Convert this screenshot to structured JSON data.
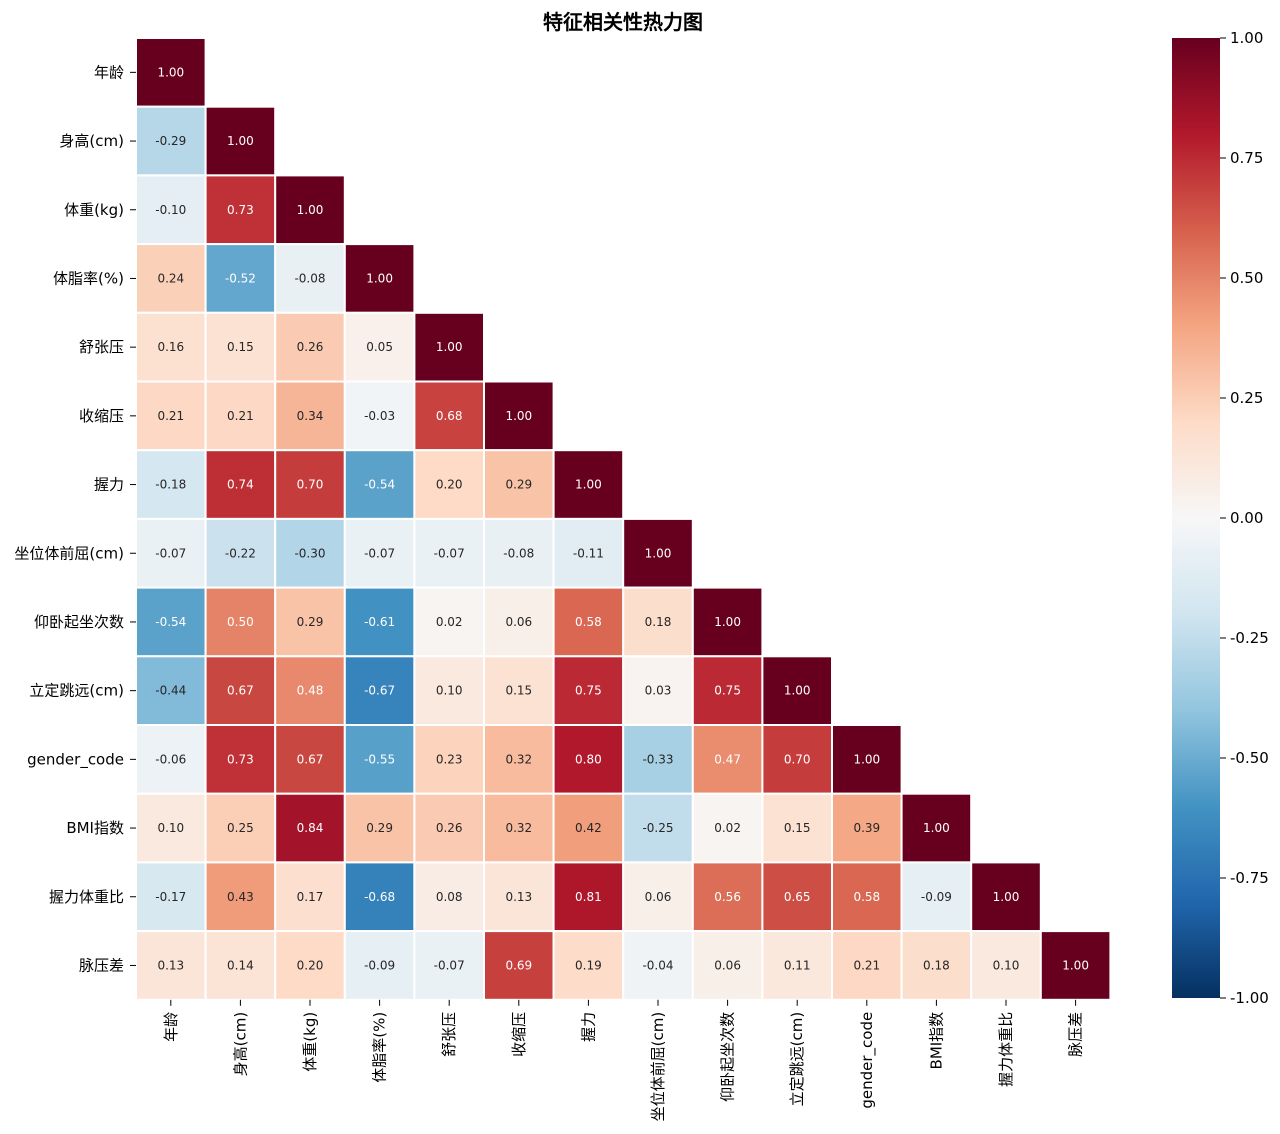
{
  "chart_data": {
    "type": "heatmap",
    "title": "特征相关性热力图",
    "labels": [
      "年龄",
      "身高(cm)",
      "体重(kg)",
      "体脂率(%)",
      "舒张压",
      "收缩压",
      "握力",
      "坐位体前屈(cm)",
      "仰卧起坐次数",
      "立定跳远(cm)",
      "gender_code",
      "BMI指数",
      "握力体重比",
      "脉压差"
    ],
    "matrix": [
      [
        1.0
      ],
      [
        -0.29,
        1.0
      ],
      [
        -0.1,
        0.73,
        1.0
      ],
      [
        0.24,
        -0.52,
        -0.08,
        1.0
      ],
      [
        0.16,
        0.15,
        0.26,
        0.05,
        1.0
      ],
      [
        0.21,
        0.21,
        0.34,
        -0.03,
        0.68,
        1.0
      ],
      [
        -0.18,
        0.74,
        0.7,
        -0.54,
        0.2,
        0.29,
        1.0
      ],
      [
        -0.07,
        -0.22,
        -0.3,
        -0.07,
        -0.07,
        -0.08,
        -0.11,
        1.0
      ],
      [
        -0.54,
        0.5,
        0.29,
        -0.61,
        0.02,
        0.06,
        0.58,
        0.18,
        1.0
      ],
      [
        -0.44,
        0.67,
        0.48,
        -0.67,
        0.1,
        0.15,
        0.75,
        0.03,
        0.75,
        1.0
      ],
      [
        -0.06,
        0.73,
        0.67,
        -0.55,
        0.23,
        0.32,
        0.8,
        -0.33,
        0.47,
        0.7,
        1.0
      ],
      [
        0.1,
        0.25,
        0.84,
        0.29,
        0.26,
        0.32,
        0.42,
        -0.25,
        0.02,
        0.15,
        0.39,
        1.0
      ],
      [
        -0.17,
        0.43,
        0.17,
        -0.68,
        0.08,
        0.13,
        0.81,
        0.06,
        0.56,
        0.65,
        0.58,
        -0.09,
        1.0
      ],
      [
        0.13,
        0.14,
        0.2,
        -0.09,
        -0.07,
        0.69,
        0.19,
        -0.04,
        0.06,
        0.11,
        0.21,
        0.18,
        0.1,
        1.0
      ]
    ],
    "value_format": "2 decimals",
    "colormap": "RdBu_r",
    "vmin": -1.0,
    "vmax": 1.0,
    "mask": "upper triangle",
    "colorbar_ticks": [
      "1.00",
      "0.75",
      "0.50",
      "0.25",
      "0.00",
      "-0.25",
      "-0.50",
      "-0.75",
      "-1.00"
    ],
    "colorbar_tick_values": [
      1.0,
      0.75,
      0.5,
      0.25,
      0.0,
      -0.25,
      -0.5,
      -0.75,
      -1.0
    ],
    "grid": false
  }
}
